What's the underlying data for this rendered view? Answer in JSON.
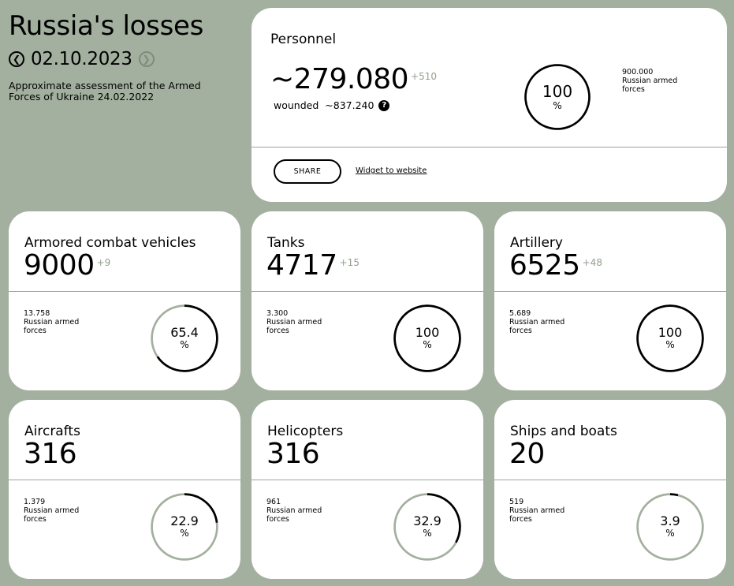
{
  "header": {
    "title": "Russia's losses",
    "date": "02.10.2023",
    "prev_icon": "chevron-left-circle-icon",
    "next_icon": "chevron-right-circle-icon",
    "subtitle": "Approximate assessment of the Armed Forces of Ukraine 24.02.2022"
  },
  "personnel": {
    "name": "Personnel",
    "value": "~279.080",
    "delta": "+510",
    "wounded_label": "wounded",
    "wounded_value": "~837.240",
    "help_icon": "question-circle-icon",
    "percent_value": 100,
    "percent_label": "100",
    "percent_sign": "%",
    "total_number": "900.000",
    "total_line1": "Russian armed",
    "total_line2": "forces",
    "share_label": "SHARE",
    "widget_link": "Widget to website"
  },
  "cards": [
    {
      "name": "Armored combat vehicles",
      "value": "9000",
      "delta": "+9",
      "total_number": "13.758",
      "total_line1": "Russian armed",
      "total_line2": "forces",
      "percent_value": 65.4,
      "percent_label": "65.4",
      "percent_sign": "%"
    },
    {
      "name": "Tanks",
      "value": "4717",
      "delta": "+15",
      "total_number": "3.300",
      "total_line1": "Russian armed",
      "total_line2": "forces",
      "percent_value": 100,
      "percent_label": "100",
      "percent_sign": "%"
    },
    {
      "name": "Artillery",
      "value": "6525",
      "delta": "+48",
      "total_number": "5.689",
      "total_line1": "Russian armed",
      "total_line2": "forces",
      "percent_value": 100,
      "percent_label": "100",
      "percent_sign": "%"
    },
    {
      "name": "Aircrafts",
      "value": "316",
      "delta": "",
      "total_number": "1.379",
      "total_line1": "Russian armed",
      "total_line2": "forces",
      "percent_value": 22.9,
      "percent_label": "22.9",
      "percent_sign": "%"
    },
    {
      "name": "Helicopters",
      "value": "316",
      "delta": "",
      "total_number": "961",
      "total_line1": "Russian armed",
      "total_line2": "forces",
      "percent_value": 32.9,
      "percent_label": "32.9",
      "percent_sign": "%"
    },
    {
      "name": "Ships and boats",
      "value": "20",
      "delta": "",
      "total_number": "519",
      "total_line1": "Russian armed",
      "total_line2": "forces",
      "percent_value": 3.9,
      "percent_label": "3.9",
      "percent_sign": "%"
    }
  ],
  "colors": {
    "background": "#a3b09f",
    "card": "#ffffff",
    "ring_track": "#a3b09f",
    "ring_fill": "#000000",
    "delta": "#93a08f"
  }
}
